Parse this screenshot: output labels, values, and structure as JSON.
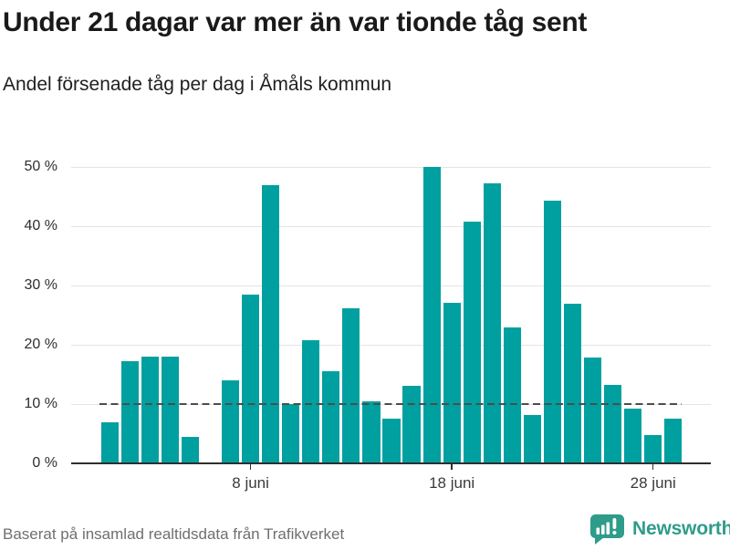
{
  "header": {
    "title": "Under 21 dagar var mer än var tionde tåg sent",
    "subtitle": "Andel försenade tåg per dag i Åmåls kommun"
  },
  "chart_data": {
    "type": "bar",
    "title": "Under 21 dagar var mer än var tionde tåg sent",
    "subtitle": "Andel försenade tåg per dag i Åmåls kommun",
    "unit": "%",
    "categories": [
      "1 juni",
      "2 juni",
      "3 juni",
      "4 juni",
      "5 juni",
      "6 juni",
      "7 juni",
      "8 juni",
      "9 juni",
      "10 juni",
      "11 juni",
      "12 juni",
      "13 juni",
      "14 juni",
      "15 juni",
      "16 juni",
      "17 juni",
      "18 juni",
      "19 juni",
      "20 juni",
      "21 juni",
      "22 juni",
      "23 juni",
      "24 juni",
      "25 juni",
      "26 juni",
      "27 juni",
      "28 juni",
      "29 juni"
    ],
    "values": [
      7.0,
      17.3,
      18.0,
      18.0,
      4.4,
      null,
      14.0,
      28.4,
      47.0,
      10.0,
      20.8,
      15.5,
      26.2,
      10.4,
      7.6,
      13.1,
      50.0,
      27.1,
      40.8,
      47.3,
      22.9,
      8.2,
      44.3,
      27.0,
      17.9,
      13.2,
      9.2,
      4.7,
      7.5
    ],
    "ylim": [
      0,
      50
    ],
    "yticks": [
      {
        "value": 0,
        "label": "0 %"
      },
      {
        "value": 10,
        "label": "10 %"
      },
      {
        "value": 20,
        "label": "20 %"
      },
      {
        "value": 30,
        "label": "30 %"
      },
      {
        "value": 40,
        "label": "40 %"
      },
      {
        "value": 50,
        "label": "50 %"
      }
    ],
    "xticks": [
      {
        "day": 8,
        "label": "8 juni"
      },
      {
        "day": 18,
        "label": "18 juni"
      },
      {
        "day": 28,
        "label": "28 juni"
      }
    ],
    "reference_line": {
      "value": 10,
      "style": "dashed",
      "color": "#4d4d4d"
    },
    "bar_color": "#00a0a0",
    "grid": true,
    "legend": "none",
    "missing_days": [
      "6 juni"
    ]
  },
  "footer": {
    "source": "Baserat på insamlad realtidsdata från Trafikverket",
    "brand_name": "Newsworthy",
    "brand_color": "#2f9c8a",
    "logo_icon": "bar-chart-speech-bubble-icon"
  }
}
